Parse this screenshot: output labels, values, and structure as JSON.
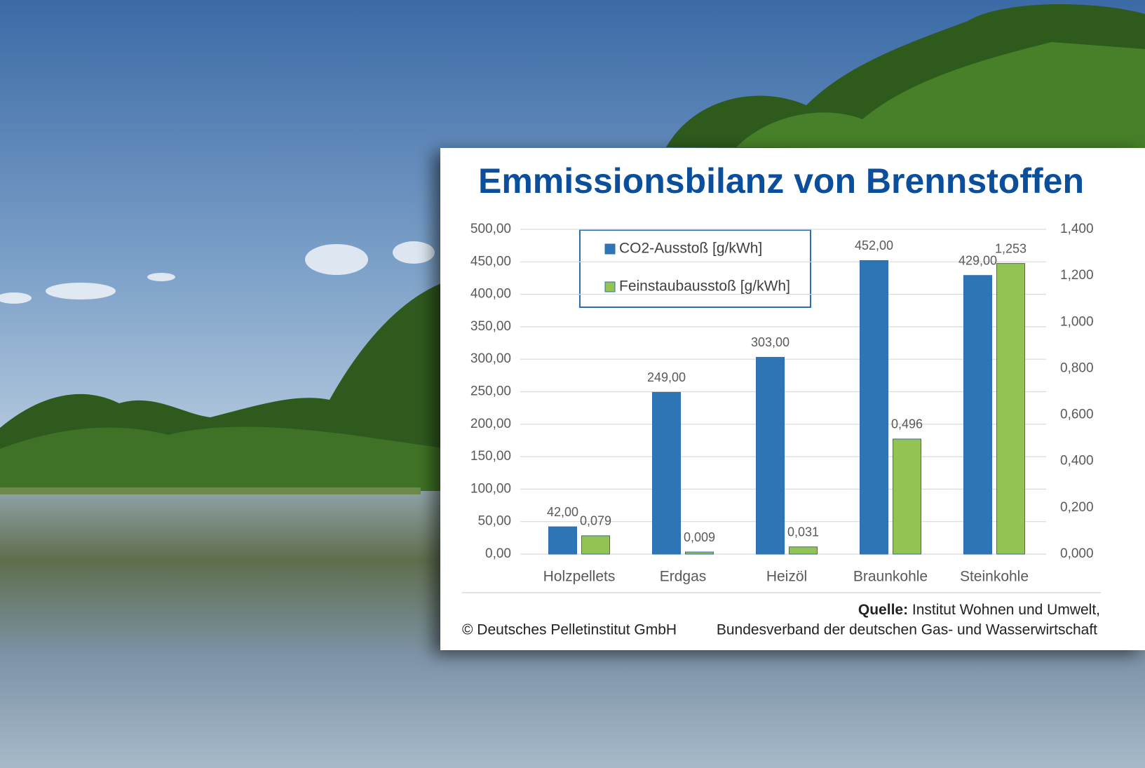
{
  "chart_data": {
    "type": "bar",
    "title": "Emmissionsbilanz von Brennstoffen",
    "categories": [
      "Holzpellets",
      "Erdgas",
      "Heizöl",
      "Braunkohle",
      "Steinkohle"
    ],
    "series": [
      {
        "name": "CO2-Ausstoß [g/kWh]",
        "color": "#2e75b6",
        "values": [
          42,
          249,
          303,
          452,
          429
        ],
        "value_labels": [
          "42,00",
          "249,00",
          "303,00",
          "452,00",
          "429,00"
        ]
      },
      {
        "name": "Feinstaubausstoß [g/kWh]",
        "color": "#92c353",
        "axis": "y2",
        "values": [
          0.079,
          0.009,
          0.031,
          0.496,
          1.253
        ],
        "value_labels": [
          "0,079",
          "0,009",
          "0,031",
          "0,496",
          "1,253"
        ]
      }
    ],
    "ylim": [
      0,
      500
    ],
    "yticks": [
      {
        "value": 0,
        "label": "0,00"
      },
      {
        "value": 50,
        "label": "50,00"
      },
      {
        "value": 100,
        "label": "100,00"
      },
      {
        "value": 150,
        "label": "150,00"
      },
      {
        "value": 200,
        "label": "200,00"
      },
      {
        "value": 250,
        "label": "250,00"
      },
      {
        "value": 300,
        "label": "300,00"
      },
      {
        "value": 350,
        "label": "350,00"
      },
      {
        "value": 400,
        "label": "400,00"
      },
      {
        "value": 450,
        "label": "450,00"
      },
      {
        "value": 500,
        "label": "500,00"
      }
    ],
    "y2lim": [
      0,
      1.4
    ],
    "y2ticks": [
      {
        "value": 0,
        "label": "0,000"
      },
      {
        "value": 0.2,
        "label": "0,200"
      },
      {
        "value": 0.4,
        "label": "0,400"
      },
      {
        "value": 0.6,
        "label": "0,600"
      },
      {
        "value": 0.8,
        "label": "0,800"
      },
      {
        "value": 1.0,
        "label": "1,000"
      },
      {
        "value": 1.2,
        "label": "1,200"
      },
      {
        "value": 1.4,
        "label": "1,400"
      }
    ],
    "grid": true,
    "legend": "top-left",
    "footer": {
      "credit": "© Deutsches Pelletinstitut GmbH",
      "source_label": "Quelle:",
      "source_lines": [
        "Institut Wohnen und Umwelt,",
        "Bundesverband der deutschen Gas- und Wasserwirtschaft"
      ]
    }
  }
}
